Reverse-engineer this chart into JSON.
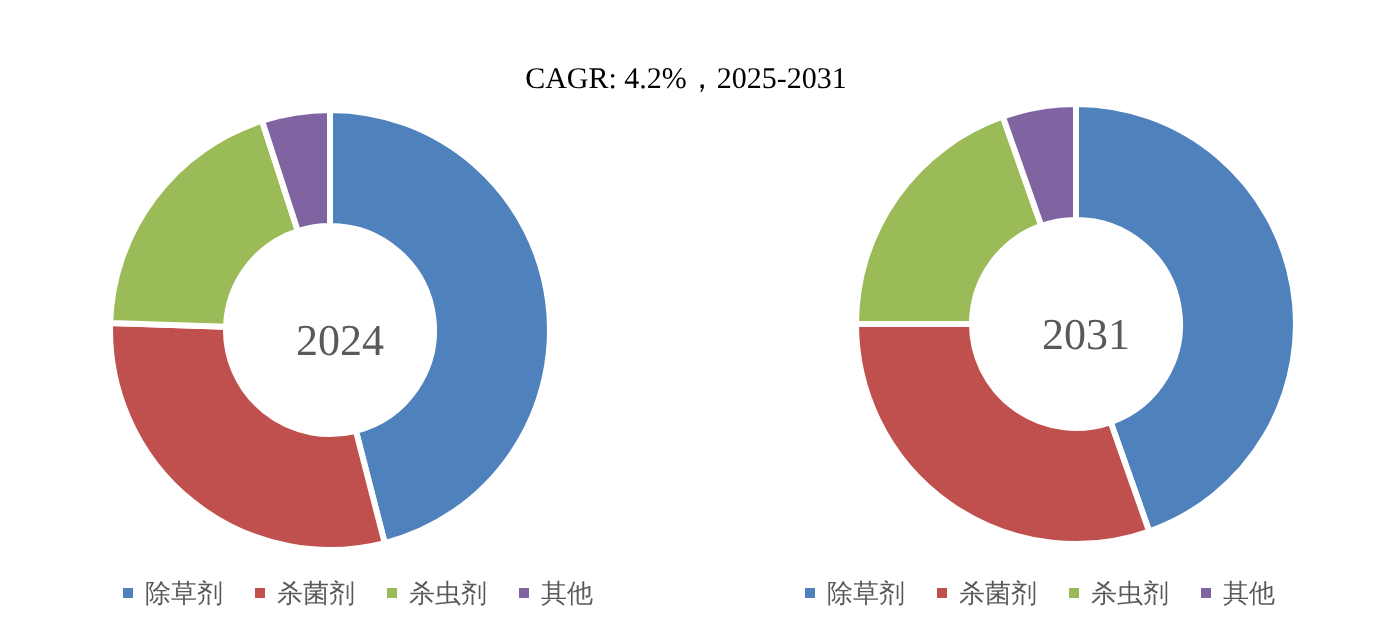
{
  "chart_data": [
    {
      "type": "donut",
      "title": "2024",
      "annotations": [
        "CAGR:   4.2%，2025-2031"
      ],
      "categories": [
        "除草剂",
        "杀菌剂",
        "杀虫剂",
        "其他"
      ],
      "values": [
        46,
        29.5,
        19.5,
        5
      ],
      "colors": [
        "#4f81bd",
        "#c0504d",
        "#9bbb59",
        "#8064a2"
      ],
      "legend": "bottom"
    },
    {
      "type": "donut",
      "title": "2031",
      "categories": [
        "除草剂",
        "杀菌剂",
        "杀虫剂",
        "其他"
      ],
      "values": [
        44.6,
        30.4,
        19.6,
        5.4
      ],
      "colors": [
        "#4f81bd",
        "#c0504d",
        "#9bbb59",
        "#8064a2"
      ],
      "legend": "bottom"
    }
  ]
}
